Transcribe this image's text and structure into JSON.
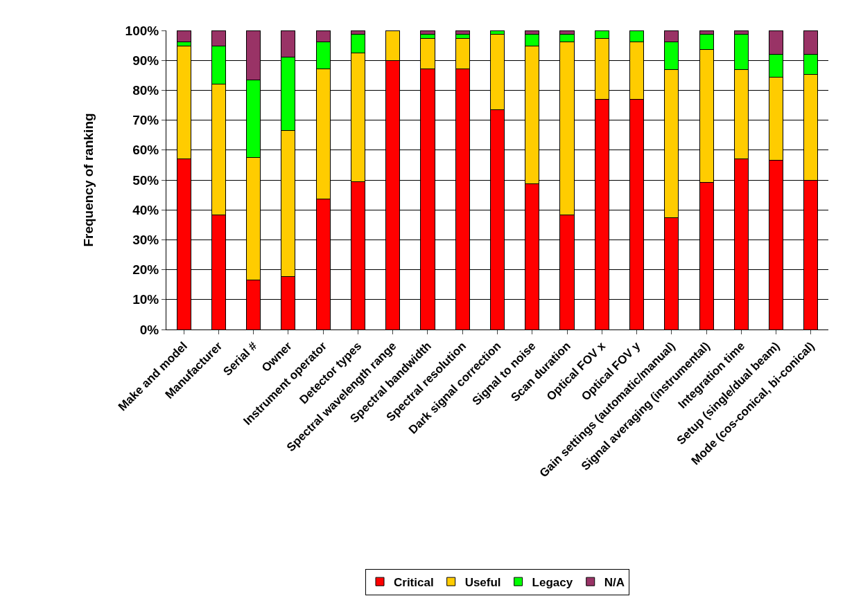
{
  "chart_data": {
    "type": "bar",
    "stacked": true,
    "ylabel": "Frequency of ranking",
    "categories": [
      "Make and model",
      "Manufacturer",
      "Serial #",
      "Owner",
      "Instrument operator",
      "Detector types",
      "Spectral wavelength range",
      "Spectral bandwidth",
      "Spectral resolution",
      "Dark signal correction",
      "Signal to noise",
      "Scan duration",
      "Optical FOV x",
      "Optical FOV y",
      "Gain settings (automatic/manual)",
      "Signal averaging (instrumental)",
      "Integration time",
      "Setup (single/dual beam)",
      "Mode (cos-conical, bi-conical)"
    ],
    "series": [
      {
        "name": "Critical",
        "color": "#ff0000",
        "values": [
          57.0,
          38.4,
          16.5,
          17.8,
          43.6,
          49.4,
          90.0,
          87.2,
          87.2,
          73.6,
          48.7,
          38.4,
          77.0,
          77.0,
          37.5,
          49.3,
          57.0,
          56.6,
          49.9
        ]
      },
      {
        "name": "Useful",
        "color": "#ffcc00",
        "values": [
          37.8,
          43.7,
          41.1,
          48.7,
          43.6,
          43.0,
          10.0,
          10.2,
          10.2,
          25.2,
          46.1,
          57.7,
          20.4,
          19.1,
          49.4,
          44.3,
          29.9,
          27.7,
          35.5
        ]
      },
      {
        "name": "Legacy",
        "color": "#00ff00",
        "values": [
          1.3,
          12.7,
          25.8,
          24.5,
          8.9,
          6.4,
          0,
          1.4,
          1.4,
          1.2,
          4.0,
          2.7,
          2.6,
          3.9,
          9.2,
          5.2,
          11.9,
          7.7,
          6.6
        ]
      },
      {
        "name": "N/A",
        "color": "#993366",
        "values": [
          3.9,
          5.2,
          16.6,
          9.0,
          3.9,
          1.2,
          0,
          1.2,
          1.2,
          0,
          1.2,
          1.2,
          0,
          0,
          3.9,
          1.2,
          1.2,
          8.0,
          8.0
        ]
      }
    ],
    "ylim": [
      0,
      100
    ],
    "yticks": [
      {
        "value": 0,
        "label": "0%"
      },
      {
        "value": 10,
        "label": "10%"
      },
      {
        "value": 20,
        "label": "20%"
      },
      {
        "value": 30,
        "label": "30%"
      },
      {
        "value": 40,
        "label": "40%"
      },
      {
        "value": 50,
        "label": "50%"
      },
      {
        "value": 60,
        "label": "60%"
      },
      {
        "value": 70,
        "label": "70%"
      },
      {
        "value": 80,
        "label": "80%"
      },
      {
        "value": 90,
        "label": "90%"
      },
      {
        "value": 100,
        "label": "100%"
      }
    ],
    "grid": "y",
    "legend": "bottom"
  }
}
